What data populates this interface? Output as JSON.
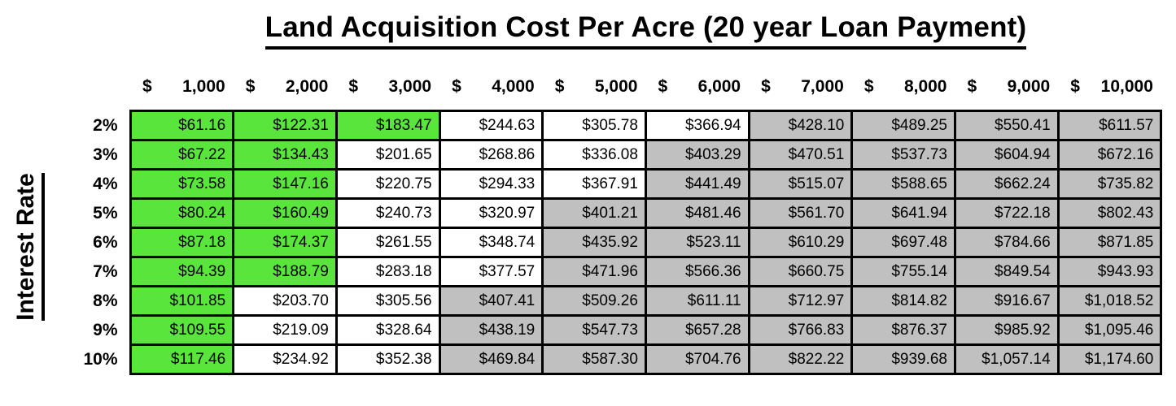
{
  "title": "Land Acquisition Cost Per Acre (20 year Loan Payment)",
  "axis": {
    "y_label": "Interest Rate"
  },
  "colors": {
    "green": "#5AE53C",
    "white": "#FFFFFF",
    "gray": "#C0C0C0",
    "border": "#000000",
    "text": "#000000"
  },
  "columns": [
    {
      "currency": "$",
      "amount": "1,000"
    },
    {
      "currency": "$",
      "amount": "2,000"
    },
    {
      "currency": "$",
      "amount": "3,000"
    },
    {
      "currency": "$",
      "amount": "4,000"
    },
    {
      "currency": "$",
      "amount": "5,000"
    },
    {
      "currency": "$",
      "amount": "6,000"
    },
    {
      "currency": "$",
      "amount": "7,000"
    },
    {
      "currency": "$",
      "amount": "8,000"
    },
    {
      "currency": "$",
      "amount": "9,000"
    },
    {
      "currency": "$",
      "amount": "10,000"
    }
  ],
  "rows": [
    {
      "label": "2%",
      "cells": [
        {
          "value": "$61.16",
          "color": "green"
        },
        {
          "value": "$122.31",
          "color": "green"
        },
        {
          "value": "$183.47",
          "color": "green"
        },
        {
          "value": "$244.63",
          "color": "white"
        },
        {
          "value": "$305.78",
          "color": "white"
        },
        {
          "value": "$366.94",
          "color": "white"
        },
        {
          "value": "$428.10",
          "color": "gray"
        },
        {
          "value": "$489.25",
          "color": "gray"
        },
        {
          "value": "$550.41",
          "color": "gray"
        },
        {
          "value": "$611.57",
          "color": "gray"
        }
      ]
    },
    {
      "label": "3%",
      "cells": [
        {
          "value": "$67.22",
          "color": "green"
        },
        {
          "value": "$134.43",
          "color": "green"
        },
        {
          "value": "$201.65",
          "color": "white"
        },
        {
          "value": "$268.86",
          "color": "white"
        },
        {
          "value": "$336.08",
          "color": "white"
        },
        {
          "value": "$403.29",
          "color": "gray"
        },
        {
          "value": "$470.51",
          "color": "gray"
        },
        {
          "value": "$537.73",
          "color": "gray"
        },
        {
          "value": "$604.94",
          "color": "gray"
        },
        {
          "value": "$672.16",
          "color": "gray"
        }
      ]
    },
    {
      "label": "4%",
      "cells": [
        {
          "value": "$73.58",
          "color": "green"
        },
        {
          "value": "$147.16",
          "color": "green"
        },
        {
          "value": "$220.75",
          "color": "white"
        },
        {
          "value": "$294.33",
          "color": "white"
        },
        {
          "value": "$367.91",
          "color": "white"
        },
        {
          "value": "$441.49",
          "color": "gray"
        },
        {
          "value": "$515.07",
          "color": "gray"
        },
        {
          "value": "$588.65",
          "color": "gray"
        },
        {
          "value": "$662.24",
          "color": "gray"
        },
        {
          "value": "$735.82",
          "color": "gray"
        }
      ]
    },
    {
      "label": "5%",
      "cells": [
        {
          "value": "$80.24",
          "color": "green"
        },
        {
          "value": "$160.49",
          "color": "green"
        },
        {
          "value": "$240.73",
          "color": "white"
        },
        {
          "value": "$320.97",
          "color": "white"
        },
        {
          "value": "$401.21",
          "color": "gray"
        },
        {
          "value": "$481.46",
          "color": "gray"
        },
        {
          "value": "$561.70",
          "color": "gray"
        },
        {
          "value": "$641.94",
          "color": "gray"
        },
        {
          "value": "$722.18",
          "color": "gray"
        },
        {
          "value": "$802.43",
          "color": "gray"
        }
      ]
    },
    {
      "label": "6%",
      "cells": [
        {
          "value": "$87.18",
          "color": "green"
        },
        {
          "value": "$174.37",
          "color": "green"
        },
        {
          "value": "$261.55",
          "color": "white"
        },
        {
          "value": "$348.74",
          "color": "white"
        },
        {
          "value": "$435.92",
          "color": "gray"
        },
        {
          "value": "$523.11",
          "color": "gray"
        },
        {
          "value": "$610.29",
          "color": "gray"
        },
        {
          "value": "$697.48",
          "color": "gray"
        },
        {
          "value": "$784.66",
          "color": "gray"
        },
        {
          "value": "$871.85",
          "color": "gray"
        }
      ]
    },
    {
      "label": "7%",
      "cells": [
        {
          "value": "$94.39",
          "color": "green"
        },
        {
          "value": "$188.79",
          "color": "green"
        },
        {
          "value": "$283.18",
          "color": "white"
        },
        {
          "value": "$377.57",
          "color": "white"
        },
        {
          "value": "$471.96",
          "color": "gray"
        },
        {
          "value": "$566.36",
          "color": "gray"
        },
        {
          "value": "$660.75",
          "color": "gray"
        },
        {
          "value": "$755.14",
          "color": "gray"
        },
        {
          "value": "$849.54",
          "color": "gray"
        },
        {
          "value": "$943.93",
          "color": "gray"
        }
      ]
    },
    {
      "label": "8%",
      "cells": [
        {
          "value": "$101.85",
          "color": "green"
        },
        {
          "value": "$203.70",
          "color": "white"
        },
        {
          "value": "$305.56",
          "color": "white"
        },
        {
          "value": "$407.41",
          "color": "gray"
        },
        {
          "value": "$509.26",
          "color": "gray"
        },
        {
          "value": "$611.11",
          "color": "gray"
        },
        {
          "value": "$712.97",
          "color": "gray"
        },
        {
          "value": "$814.82",
          "color": "gray"
        },
        {
          "value": "$916.67",
          "color": "gray"
        },
        {
          "value": "$1,018.52",
          "color": "gray"
        }
      ]
    },
    {
      "label": "9%",
      "cells": [
        {
          "value": "$109.55",
          "color": "green"
        },
        {
          "value": "$219.09",
          "color": "white"
        },
        {
          "value": "$328.64",
          "color": "white"
        },
        {
          "value": "$438.19",
          "color": "gray"
        },
        {
          "value": "$547.73",
          "color": "gray"
        },
        {
          "value": "$657.28",
          "color": "gray"
        },
        {
          "value": "$766.83",
          "color": "gray"
        },
        {
          "value": "$876.37",
          "color": "gray"
        },
        {
          "value": "$985.92",
          "color": "gray"
        },
        {
          "value": "$1,095.46",
          "color": "gray"
        }
      ]
    },
    {
      "label": "10%",
      "cells": [
        {
          "value": "$117.46",
          "color": "green"
        },
        {
          "value": "$234.92",
          "color": "white"
        },
        {
          "value": "$352.38",
          "color": "white"
        },
        {
          "value": "$469.84",
          "color": "gray"
        },
        {
          "value": "$587.30",
          "color": "gray"
        },
        {
          "value": "$704.76",
          "color": "gray"
        },
        {
          "value": "$822.22",
          "color": "gray"
        },
        {
          "value": "$939.68",
          "color": "gray"
        },
        {
          "value": "$1,057.14",
          "color": "gray"
        },
        {
          "value": "$1,174.60",
          "color": "gray"
        }
      ]
    }
  ],
  "chart_data": {
    "type": "table",
    "title": "Land Acquisition Cost Per Acre (20 year Loan Payment)",
    "row_axis_label": "Interest Rate",
    "columns_land_cost_per_acre": [
      1000,
      2000,
      3000,
      4000,
      5000,
      6000,
      7000,
      8000,
      9000,
      10000
    ],
    "row_labels": [
      "2%",
      "3%",
      "4%",
      "5%",
      "6%",
      "7%",
      "8%",
      "9%",
      "10%"
    ],
    "values_monthly_payment": [
      [
        61.16,
        122.31,
        183.47,
        244.63,
        305.78,
        366.94,
        428.1,
        489.25,
        550.41,
        611.57
      ],
      [
        67.22,
        134.43,
        201.65,
        268.86,
        336.08,
        403.29,
        470.51,
        537.73,
        604.94,
        672.16
      ],
      [
        73.58,
        147.16,
        220.75,
        294.33,
        367.91,
        441.49,
        515.07,
        588.65,
        662.24,
        735.82
      ],
      [
        80.24,
        160.49,
        240.73,
        320.97,
        401.21,
        481.46,
        561.7,
        641.94,
        722.18,
        802.43
      ],
      [
        87.18,
        174.37,
        261.55,
        348.74,
        435.92,
        523.11,
        610.29,
        697.48,
        784.66,
        871.85
      ],
      [
        94.39,
        188.79,
        283.18,
        377.57,
        471.96,
        566.36,
        660.75,
        755.14,
        849.54,
        943.93
      ],
      [
        101.85,
        203.7,
        305.56,
        407.41,
        509.26,
        611.11,
        712.97,
        814.82,
        916.67,
        1018.52
      ],
      [
        109.55,
        219.09,
        328.64,
        438.19,
        547.73,
        657.28,
        766.83,
        876.37,
        985.92,
        1095.46
      ],
      [
        117.46,
        234.92,
        352.38,
        469.84,
        587.3,
        704.76,
        822.22,
        939.68,
        1057.14,
        1174.6
      ]
    ],
    "cell_colors": [
      [
        "green",
        "green",
        "green",
        "white",
        "white",
        "white",
        "gray",
        "gray",
        "gray",
        "gray"
      ],
      [
        "green",
        "green",
        "white",
        "white",
        "white",
        "gray",
        "gray",
        "gray",
        "gray",
        "gray"
      ],
      [
        "green",
        "green",
        "white",
        "white",
        "white",
        "gray",
        "gray",
        "gray",
        "gray",
        "gray"
      ],
      [
        "green",
        "green",
        "white",
        "white",
        "gray",
        "gray",
        "gray",
        "gray",
        "gray",
        "gray"
      ],
      [
        "green",
        "green",
        "white",
        "white",
        "gray",
        "gray",
        "gray",
        "gray",
        "gray",
        "gray"
      ],
      [
        "green",
        "green",
        "white",
        "white",
        "gray",
        "gray",
        "gray",
        "gray",
        "gray",
        "gray"
      ],
      [
        "green",
        "white",
        "white",
        "gray",
        "gray",
        "gray",
        "gray",
        "gray",
        "gray",
        "gray"
      ],
      [
        "green",
        "white",
        "white",
        "gray",
        "gray",
        "gray",
        "gray",
        "gray",
        "gray",
        "gray"
      ],
      [
        "green",
        "white",
        "white",
        "gray",
        "gray",
        "gray",
        "gray",
        "gray",
        "gray",
        "gray"
      ]
    ]
  }
}
